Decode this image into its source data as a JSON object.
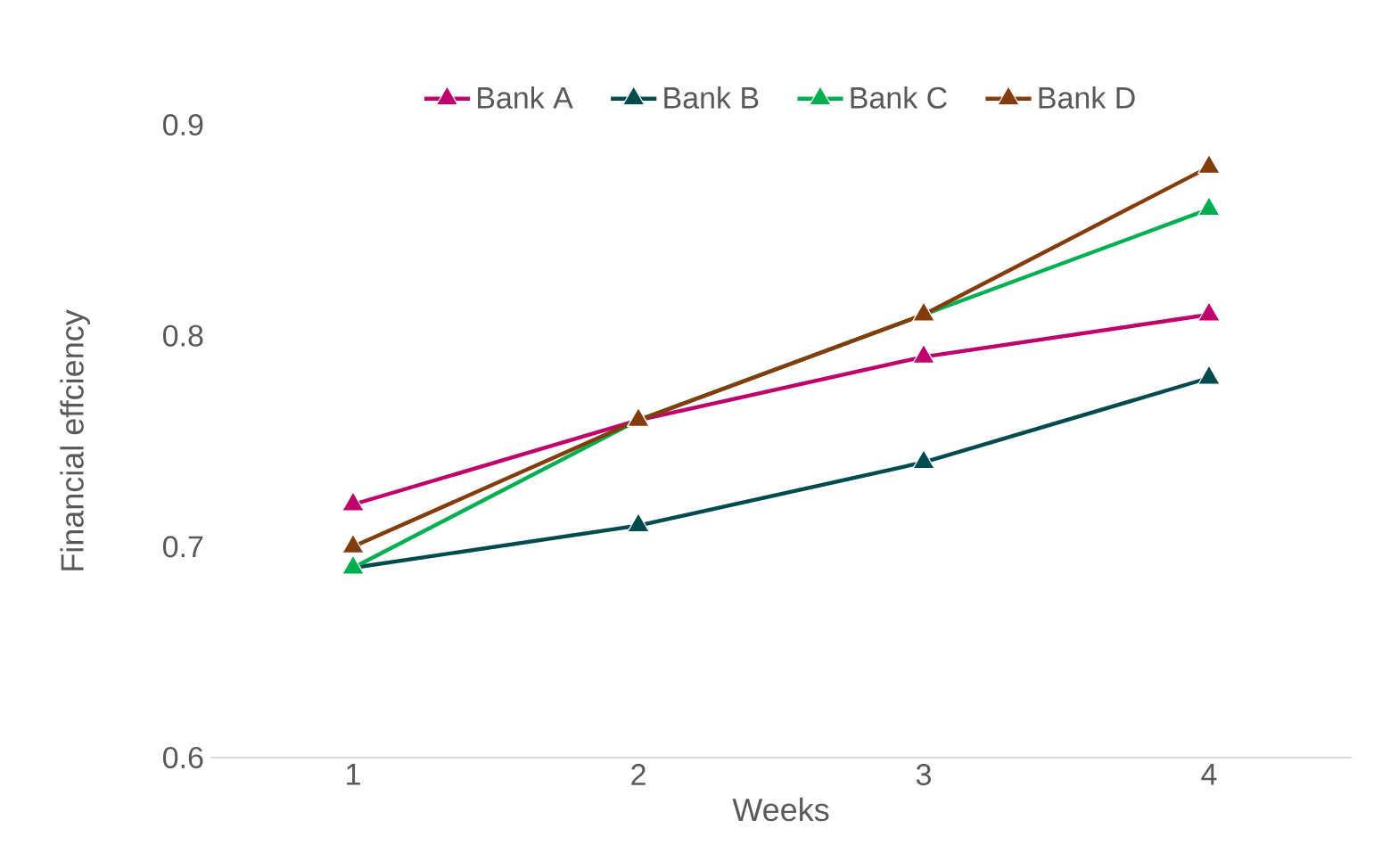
{
  "chart_data": {
    "type": "line",
    "xlabel": "Weeks",
    "ylabel": "Financial effciency",
    "categories": [
      "1",
      "2",
      "3",
      "4"
    ],
    "series": [
      {
        "name": "Bank A",
        "color": "#c0006b",
        "values": [
          0.72,
          0.76,
          0.79,
          0.81
        ]
      },
      {
        "name": "Bank B",
        "color": "#004b50",
        "values": [
          0.69,
          0.71,
          0.74,
          0.78
        ]
      },
      {
        "name": "Bank C",
        "color": "#00b050",
        "values": [
          0.69,
          0.76,
          0.81,
          0.86
        ]
      },
      {
        "name": "Bank D",
        "color": "#843c0c",
        "values": [
          0.7,
          0.76,
          0.81,
          0.88
        ]
      }
    ],
    "ylim": [
      0.6,
      0.9
    ],
    "yticks": [
      0.6,
      0.7,
      0.8,
      0.9
    ],
    "legend": "top",
    "marker": "triangle",
    "line_style": "solid"
  }
}
